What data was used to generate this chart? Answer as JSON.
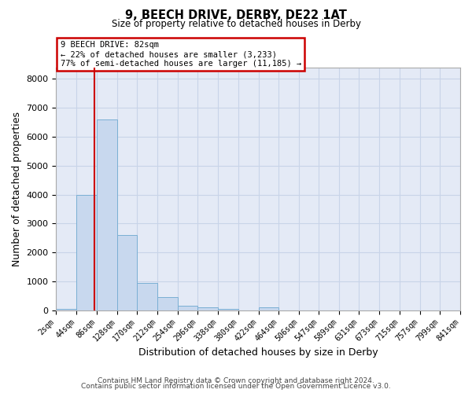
{
  "title": "9, BEECH DRIVE, DERBY, DE22 1AT",
  "subtitle": "Size of property relative to detached houses in Derby",
  "xlabel": "Distribution of detached houses by size in Derby",
  "ylabel": "Number of detached properties",
  "bar_color": "#c8d8ee",
  "bar_edgecolor": "#7aafd4",
  "grid_color": "#c8d4e8",
  "background_color": "#e4eaf6",
  "property_line_x": 82,
  "property_line_color": "#cc0000",
  "annotation_line1": "9 BEECH DRIVE: 82sqm",
  "annotation_line2": "← 22% of detached houses are smaller (3,233)",
  "annotation_line3": "77% of semi-detached houses are larger (11,185) →",
  "annotation_box_color": "#ffffff",
  "annotation_box_edgecolor": "#cc0000",
  "footer_text1": "Contains HM Land Registry data © Crown copyright and database right 2024.",
  "footer_text2": "Contains public sector information licensed under the Open Government Licence v3.0.",
  "bin_edges": [
    2,
    44,
    86,
    128,
    170,
    212,
    254,
    296,
    338,
    380,
    422,
    464,
    506,
    547,
    589,
    631,
    673,
    715,
    757,
    799,
    841
  ],
  "bin_labels": [
    "2sqm",
    "44sqm",
    "86sqm",
    "128sqm",
    "170sqm",
    "212sqm",
    "254sqm",
    "296sqm",
    "338sqm",
    "380sqm",
    "422sqm",
    "464sqm",
    "506sqm",
    "547sqm",
    "589sqm",
    "631sqm",
    "673sqm",
    "715sqm",
    "757sqm",
    "799sqm",
    "841sqm"
  ],
  "bar_heights": [
    50,
    4000,
    6600,
    2600,
    950,
    450,
    150,
    100,
    50,
    0,
    100,
    0,
    0,
    0,
    0,
    0,
    0,
    0,
    0,
    0
  ],
  "ylim": [
    0,
    8400
  ],
  "yticks": [
    0,
    1000,
    2000,
    3000,
    4000,
    5000,
    6000,
    7000,
    8000
  ]
}
